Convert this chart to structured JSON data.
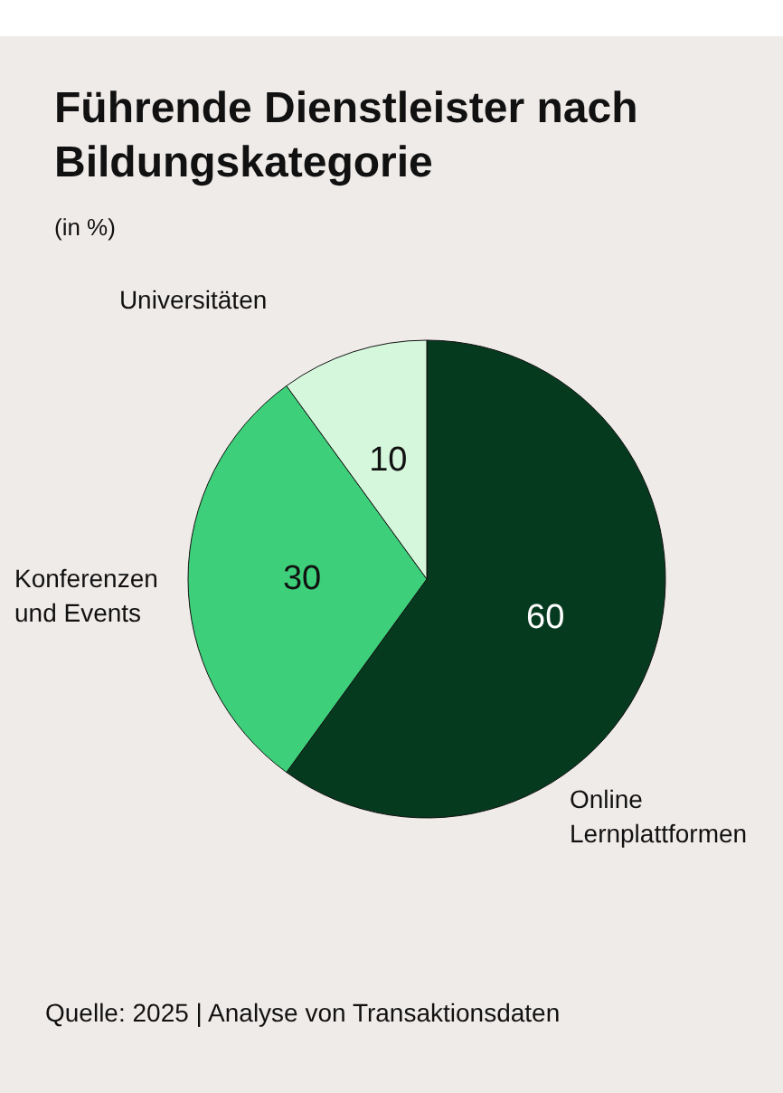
{
  "chart_data": {
    "type": "pie",
    "title": "Führende Dienstleister nach Bildungskategorie",
    "subtitle": "(in %)",
    "categories": [
      "Online Lernplattformen",
      "Konferenzen und Events",
      "Universitäten"
    ],
    "values": [
      60,
      30,
      10
    ],
    "colors": [
      "#063a1f",
      "#3dcf79",
      "#d5f8dc"
    ],
    "data_labels": true,
    "annotations": [
      "Quelle: 2025 | Analyse von Transaktionsdaten"
    ]
  }
}
